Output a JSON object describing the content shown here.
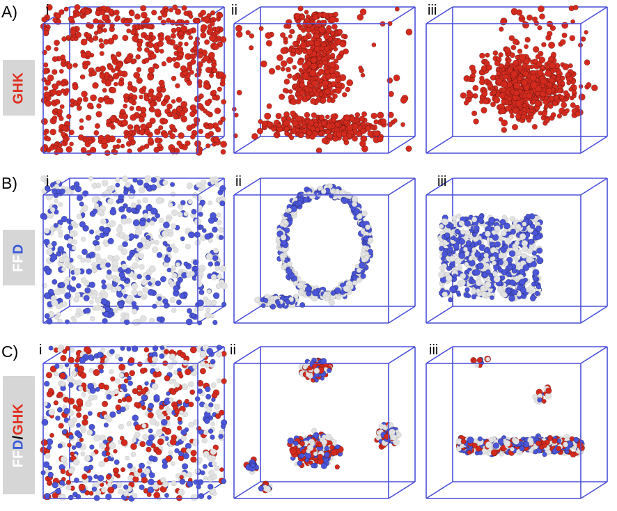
{
  "rows": [
    {
      "key": "A",
      "label": "A)",
      "tag_parts": [
        {
          "text": "GHK",
          "color": "#e03020"
        }
      ],
      "panels": [
        {
          "label": "i",
          "colors": [
            "#d42a1e"
          ],
          "pattern": "uniform"
        },
        {
          "label": "ii",
          "colors": [
            "#d42a1e"
          ],
          "pattern": "column"
        },
        {
          "label": "iii",
          "colors": [
            "#d42a1e"
          ],
          "pattern": "blob"
        }
      ]
    },
    {
      "key": "B",
      "label": "B)",
      "tag_parts": [
        {
          "text": "FF",
          "color": "#ffffff"
        },
        {
          "text": "D",
          "color": "#3a5ad8"
        }
      ],
      "panels": [
        {
          "label": "i",
          "colors": [
            "#e2e2e2",
            "#4a55d8"
          ],
          "pattern": "uniform"
        },
        {
          "label": "ii",
          "colors": [
            "#e2e2e2",
            "#4a55d8"
          ],
          "pattern": "arcs"
        },
        {
          "label": "iii",
          "colors": [
            "#e2e2e2",
            "#4a55d8"
          ],
          "pattern": "slab"
        }
      ]
    },
    {
      "key": "C",
      "label": "C)",
      "tag_parts": [
        {
          "text": "FF",
          "color": "#ffffff"
        },
        {
          "text": "D",
          "color": "#3a5ad8"
        },
        {
          "text": "/",
          "color": "#000000"
        },
        {
          "text": "GHK",
          "color": "#e03020"
        }
      ],
      "panels": [
        {
          "label": "i",
          "colors": [
            "#d42a1e",
            "#e2e2e2",
            "#4a55d8"
          ],
          "pattern": "uniform"
        },
        {
          "label": "ii",
          "colors": [
            "#d42a1e",
            "#e2e2e2",
            "#4a55d8"
          ],
          "pattern": "clusters"
        },
        {
          "label": "iii",
          "colors": [
            "#d42a1e",
            "#e2e2e2",
            "#4a55d8"
          ],
          "pattern": "flat"
        }
      ]
    }
  ],
  "box_color": "#4a4fd8"
}
